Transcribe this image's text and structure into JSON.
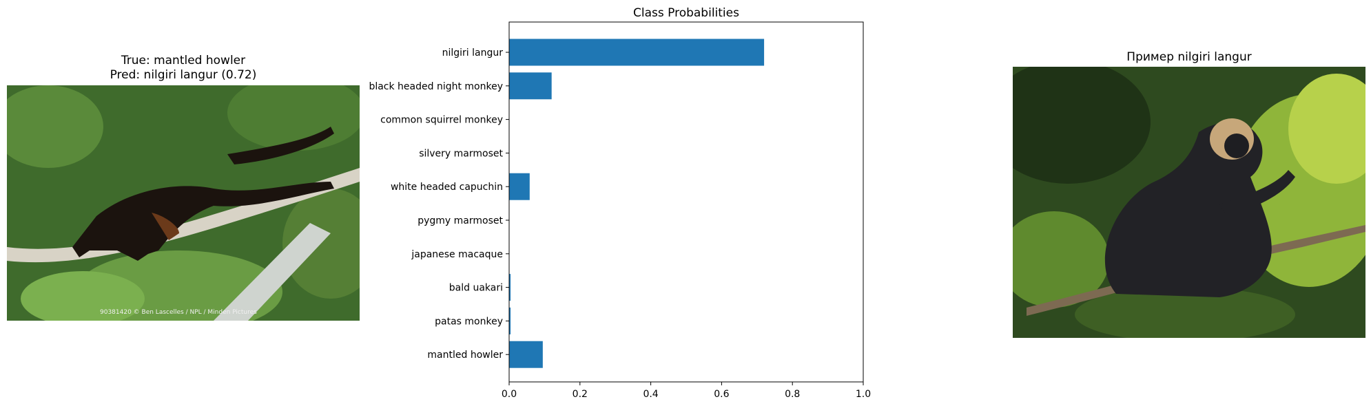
{
  "left_panel": {
    "title_line1": "True: mantled howler",
    "title_line2": "Pred: nilgiri langur (0.72)",
    "watermark": "90381420 © Ben Lascelles / NPL / Minden Pictures"
  },
  "right_panel": {
    "title": "Пример nilgiri langur"
  },
  "chart_data": {
    "type": "bar",
    "orientation": "horizontal",
    "title": "Class Probabilities",
    "xlabel": "",
    "ylabel": "",
    "xlim": [
      0,
      1
    ],
    "xticks": [
      "0.0",
      "0.2",
      "0.4",
      "0.6",
      "0.8",
      "1.0"
    ],
    "categories": [
      "nilgiri langur",
      "black headed night monkey",
      "common squirrel monkey",
      "silvery marmoset",
      "white headed capuchin",
      "pygmy marmoset",
      "japanese macaque",
      "bald uakari",
      "patas monkey",
      "mantled howler"
    ],
    "values": [
      0.72,
      0.12,
      0.0,
      0.0,
      0.058,
      0.0,
      0.0,
      0.004,
      0.004,
      0.095
    ],
    "bar_color": "#1f77b4",
    "grid": false
  }
}
